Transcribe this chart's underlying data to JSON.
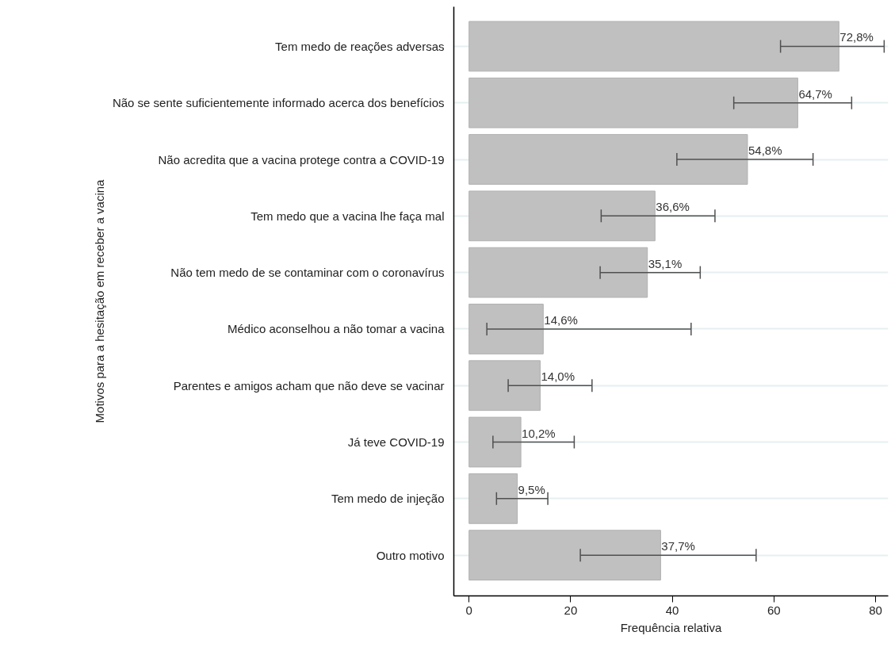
{
  "chart_data": {
    "type": "bar",
    "orientation": "horizontal",
    "xlabel": "Frequência relativa",
    "ylabel": "Motivos para a hesitação em receber a vacina",
    "categories": [
      "Tem medo de reações adversas",
      "Não se sente suficientemente informado acerca dos benefícios",
      "Não acredita que a vacina protege contra a COVID-19",
      "Tem medo que a vacina lhe faça mal",
      "Não tem medo de se contaminar com o coronavírus",
      "Médico aconselhou a não tomar a vacina",
      "Parentes e amigos acham que não deve se vacinar",
      "Já teve COVID-19",
      "Tem medo de injeção",
      "Outro motivo"
    ],
    "values": [
      72.8,
      64.7,
      54.8,
      36.6,
      35.1,
      14.6,
      14.0,
      10.2,
      9.5,
      37.7
    ],
    "value_labels": [
      "72,8%",
      "64,7%",
      "54,8%",
      "36,6%",
      "35,1%",
      "14,6%",
      "14,0%",
      "10,2%",
      "9,5%",
      "37,7%"
    ],
    "errors": [
      [
        61.3,
        81.7
      ],
      [
        52.1,
        75.3
      ],
      [
        40.9,
        67.7
      ],
      [
        26.0,
        48.4
      ],
      [
        25.8,
        45.5
      ],
      [
        3.5,
        43.7
      ],
      [
        7.7,
        24.2
      ],
      [
        4.7,
        20.7
      ],
      [
        5.4,
        15.5
      ],
      [
        21.9,
        56.5
      ]
    ],
    "color": "#c0c0c0",
    "xlim": [
      -3,
      82.5
    ],
    "xticks": [
      0,
      20,
      40,
      60,
      80
    ],
    "grid": "y"
  }
}
